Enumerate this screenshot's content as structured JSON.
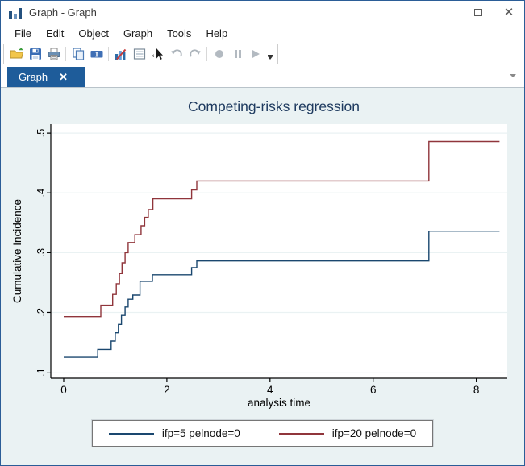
{
  "window": {
    "title": "Graph - Graph",
    "controls": {
      "minimize": "minimize",
      "maximize": "maximize",
      "close": "close"
    }
  },
  "menu": {
    "items": [
      "File",
      "Edit",
      "Object",
      "Graph",
      "Tools",
      "Help"
    ]
  },
  "toolbar": {
    "buttons": [
      "open",
      "save",
      "print",
      "copy",
      "rename-graph",
      "start-graph-editor",
      "graph-list",
      "object-pointer",
      "undo",
      "redo",
      "record",
      "pause",
      "play"
    ],
    "overflow": "toolbar-options"
  },
  "tabs": {
    "items": [
      {
        "label": "Graph",
        "closable": true
      }
    ]
  },
  "colors": {
    "tab_active": "#1e5c9a",
    "window_border": "#2b5d97",
    "canvas_background": "#eaf2f3",
    "series_navy": "#1a476f",
    "series_maroon": "#90353b",
    "title_text": "#1e3a5f"
  },
  "chart_data": {
    "type": "line",
    "subtype": "step",
    "title": "Competing-risks regression",
    "xlabel": "analysis time",
    "ylabel": "Cumulative Incidence",
    "xlim": [
      -0.25,
      8.6
    ],
    "ylim": [
      0.09,
      0.515
    ],
    "xticks": [
      0,
      2,
      4,
      6,
      8
    ],
    "xtick_labels": [
      "0",
      "2",
      "4",
      "6",
      "8"
    ],
    "yticks": [
      0.1,
      0.2,
      0.3,
      0.4,
      0.5
    ],
    "ytick_labels": [
      ".1",
      ".2",
      ".3",
      ".4",
      ".5"
    ],
    "grid": true,
    "grid_color": "#eaf2f3",
    "plot_background": "#ffffff",
    "axis_color": "#000000",
    "legend_position": "bottom",
    "series": [
      {
        "name": "ifp=5 pelnode=0",
        "color": "#1a476f",
        "points": [
          [
            0,
            0.125
          ],
          [
            0.66,
            0.138
          ],
          [
            0.92,
            0.152
          ],
          [
            1.0,
            0.166
          ],
          [
            1.06,
            0.18
          ],
          [
            1.12,
            0.195
          ],
          [
            1.19,
            0.209
          ],
          [
            1.25,
            0.222
          ],
          [
            1.34,
            0.229
          ],
          [
            1.48,
            0.252
          ],
          [
            1.72,
            0.263
          ],
          [
            2.48,
            0.275
          ],
          [
            2.58,
            0.286
          ],
          [
            7.08,
            0.336
          ],
          [
            8.45,
            0.336
          ]
        ]
      },
      {
        "name": "ifp=20 pelnode=0",
        "color": "#90353b",
        "points": [
          [
            0,
            0.193
          ],
          [
            0.72,
            0.212
          ],
          [
            0.95,
            0.23
          ],
          [
            1.02,
            0.248
          ],
          [
            1.08,
            0.265
          ],
          [
            1.13,
            0.283
          ],
          [
            1.19,
            0.3
          ],
          [
            1.25,
            0.317
          ],
          [
            1.38,
            0.33
          ],
          [
            1.5,
            0.345
          ],
          [
            1.57,
            0.359
          ],
          [
            1.64,
            0.372
          ],
          [
            1.73,
            0.39
          ],
          [
            2.48,
            0.405
          ],
          [
            2.58,
            0.42
          ],
          [
            7.08,
            0.486
          ],
          [
            8.45,
            0.486
          ]
        ]
      }
    ]
  }
}
